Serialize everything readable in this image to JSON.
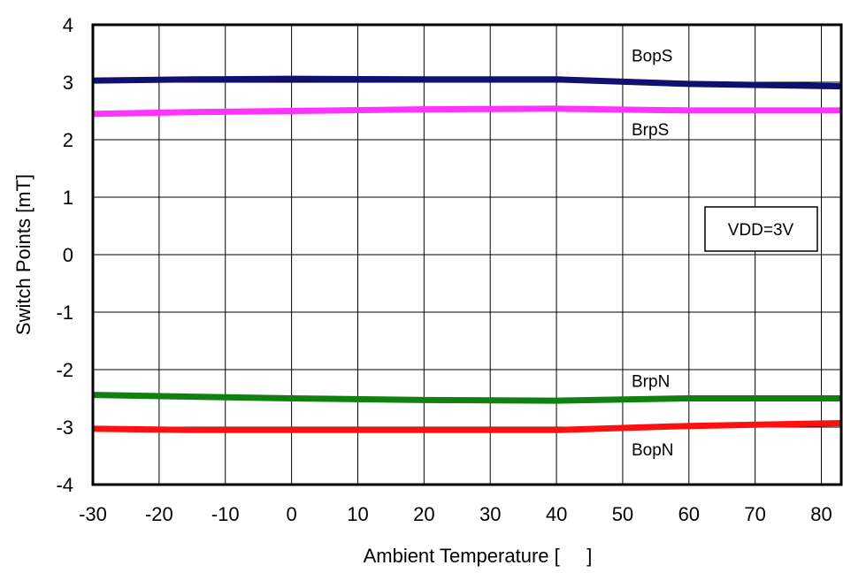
{
  "chart_data": {
    "type": "line",
    "title": "",
    "xlabel": "Ambient Temperature [     ]",
    "ylabel": "Switch Points [mT]",
    "xlim": [
      -30,
      83
    ],
    "ylim": [
      -4,
      4
    ],
    "xticks": [
      -30,
      -20,
      -10,
      0,
      10,
      20,
      30,
      40,
      50,
      60,
      70,
      80
    ],
    "yticks": [
      4,
      3,
      2,
      1,
      0,
      -1,
      -2,
      -3,
      -4
    ],
    "grid": true,
    "annotation": "VDD=3V",
    "series": [
      {
        "name": "BopS",
        "color": "#101070",
        "x": [
          -30,
          -15,
          0,
          20,
          40,
          60,
          83
        ],
        "y": [
          3.03,
          3.05,
          3.06,
          3.05,
          3.05,
          2.97,
          2.93
        ]
      },
      {
        "name": "BrpS",
        "color": "#ff33ff",
        "x": [
          -30,
          -15,
          0,
          20,
          40,
          60,
          83
        ],
        "y": [
          2.45,
          2.48,
          2.5,
          2.53,
          2.54,
          2.51,
          2.51
        ]
      },
      {
        "name": "BrpN",
        "color": "#108010",
        "x": [
          -30,
          -15,
          0,
          20,
          40,
          60,
          83
        ],
        "y": [
          -2.44,
          -2.47,
          -2.5,
          -2.53,
          -2.54,
          -2.5,
          -2.5
        ]
      },
      {
        "name": "BopN",
        "color": "#ff1010",
        "x": [
          -30,
          -15,
          0,
          20,
          40,
          60,
          83
        ],
        "y": [
          -3.03,
          -3.05,
          -3.05,
          -3.05,
          -3.05,
          -2.98,
          -2.93
        ]
      }
    ]
  }
}
